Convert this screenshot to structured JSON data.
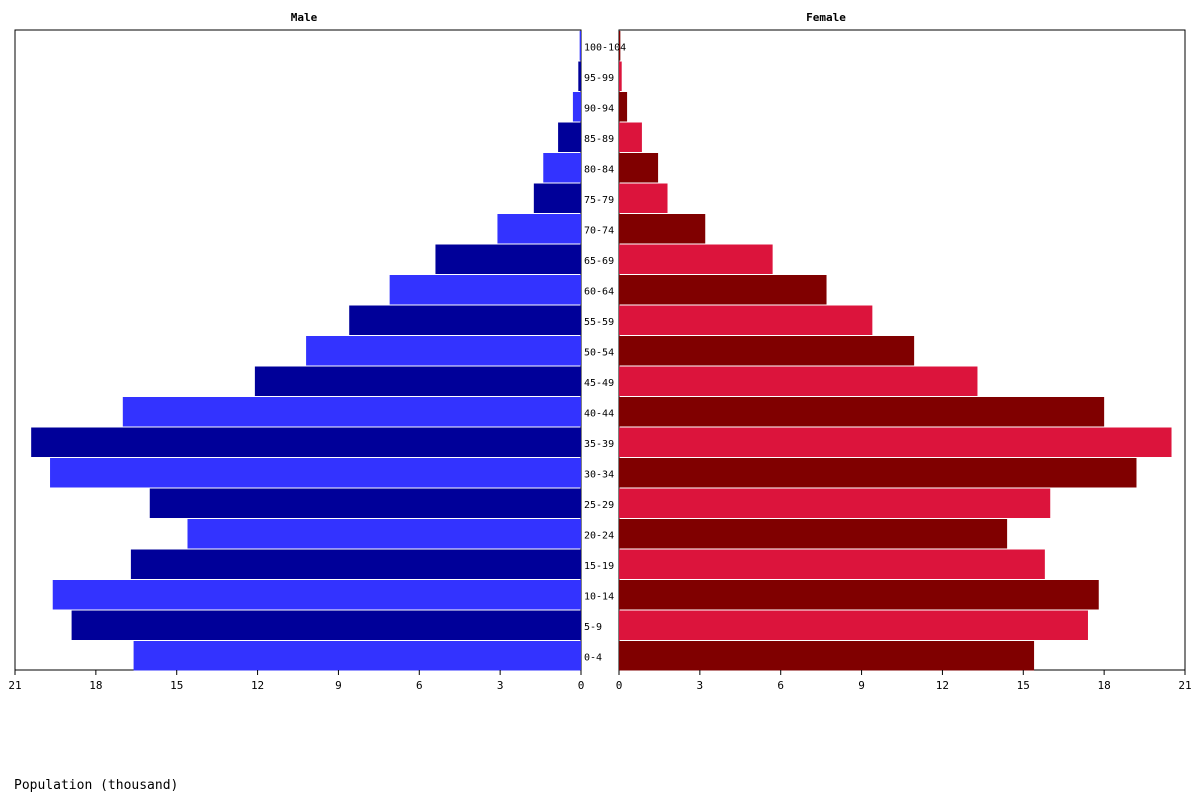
{
  "chart_data": {
    "type": "bar",
    "male_title": "Male",
    "female_title": "Female",
    "xlabel": "Population (thousand)",
    "xlim": [
      0,
      21
    ],
    "ticks": [
      "21",
      "18",
      "15",
      "12",
      "9",
      "6",
      "3",
      "0"
    ],
    "female_ticks": [
      "0",
      "3",
      "6",
      "9",
      "12",
      "15",
      "18",
      "21"
    ],
    "categories": [
      "100-104",
      "95-99",
      "90-94",
      "85-89",
      "80-84",
      "75-79",
      "70-74",
      "65-69",
      "60-64",
      "55-59",
      "50-54",
      "45-49",
      "40-44",
      "35-39",
      "30-34",
      "25-29",
      "20-24",
      "15-19",
      "10-14",
      "5-9",
      "0-4"
    ],
    "series": [
      {
        "name": "Male",
        "values": [
          0.05,
          0.1,
          0.3,
          0.85,
          1.4,
          1.75,
          3.1,
          5.4,
          7.1,
          8.6,
          10.2,
          12.1,
          17.0,
          20.4,
          19.7,
          16.0,
          14.6,
          16.7,
          19.6,
          18.9,
          16.6
        ],
        "colors": [
          "#3333ff",
          "#000099"
        ]
      },
      {
        "name": "Female",
        "values": [
          0.05,
          0.1,
          0.3,
          0.85,
          1.45,
          1.8,
          3.2,
          5.7,
          7.7,
          9.4,
          10.95,
          13.3,
          18.0,
          20.5,
          19.2,
          16.0,
          14.4,
          15.8,
          17.8,
          17.4,
          15.4
        ],
        "colors": [
          "#800000",
          "#dc143c"
        ]
      }
    ],
    "grid": false
  }
}
